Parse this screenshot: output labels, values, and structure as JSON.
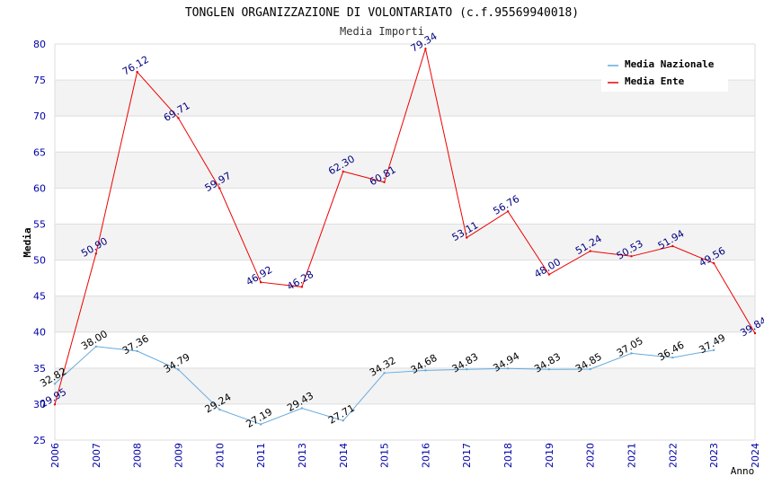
{
  "chart_data": {
    "type": "line",
    "title": "TONGLEN ORGANIZZAZIONE DI VOLONTARIATO (c.f.95569940018)",
    "subtitle": "Media Importi",
    "xlabel": "Anno",
    "ylabel": "Media",
    "ylim": [
      25,
      80
    ],
    "yticks": [
      "25",
      "30",
      "35",
      "40",
      "45",
      "50",
      "55",
      "60",
      "65",
      "70",
      "75",
      "80"
    ],
    "categories": [
      "2006",
      "2007",
      "2008",
      "2009",
      "2010",
      "2011",
      "2013",
      "2014",
      "2015",
      "2016",
      "2017",
      "2018",
      "2019",
      "2020",
      "2021",
      "2022",
      "2023",
      "2024"
    ],
    "legend_position": "top-right",
    "series": [
      {
        "name": "Media Nazionale",
        "color": "#66aadd",
        "label_color": "#000000",
        "values": [
          32.82,
          38.0,
          37.36,
          34.79,
          29.24,
          27.19,
          29.43,
          27.71,
          34.32,
          34.68,
          34.83,
          34.94,
          34.83,
          34.85,
          37.05,
          36.46,
          37.49,
          null
        ],
        "labels": [
          "32.82",
          "38.00",
          "37.36",
          "34.79",
          "29.24",
          "27.19",
          "29.43",
          "27.71",
          "34.32",
          "34.68",
          "34.83",
          "34.94",
          "34.83",
          "34.85",
          "37.05",
          "36.46",
          "37.49",
          null
        ]
      },
      {
        "name": "Media Ente",
        "color": "#ee0000",
        "label_color": "#000080",
        "values": [
          29.95,
          50.9,
          76.12,
          69.71,
          59.97,
          46.92,
          46.28,
          62.3,
          60.81,
          79.34,
          53.11,
          56.76,
          48.0,
          51.24,
          50.53,
          51.94,
          49.56,
          39.84
        ],
        "labels": [
          "29.95",
          "50.90",
          "76.12",
          "69.71",
          "59.97",
          "46.92",
          "46.28",
          "62.30",
          "60.81",
          "79.34",
          "53.11",
          "56.76",
          "48.00",
          "51.24",
          "50.53",
          "51.94",
          "49.56",
          "39.84"
        ]
      }
    ]
  }
}
